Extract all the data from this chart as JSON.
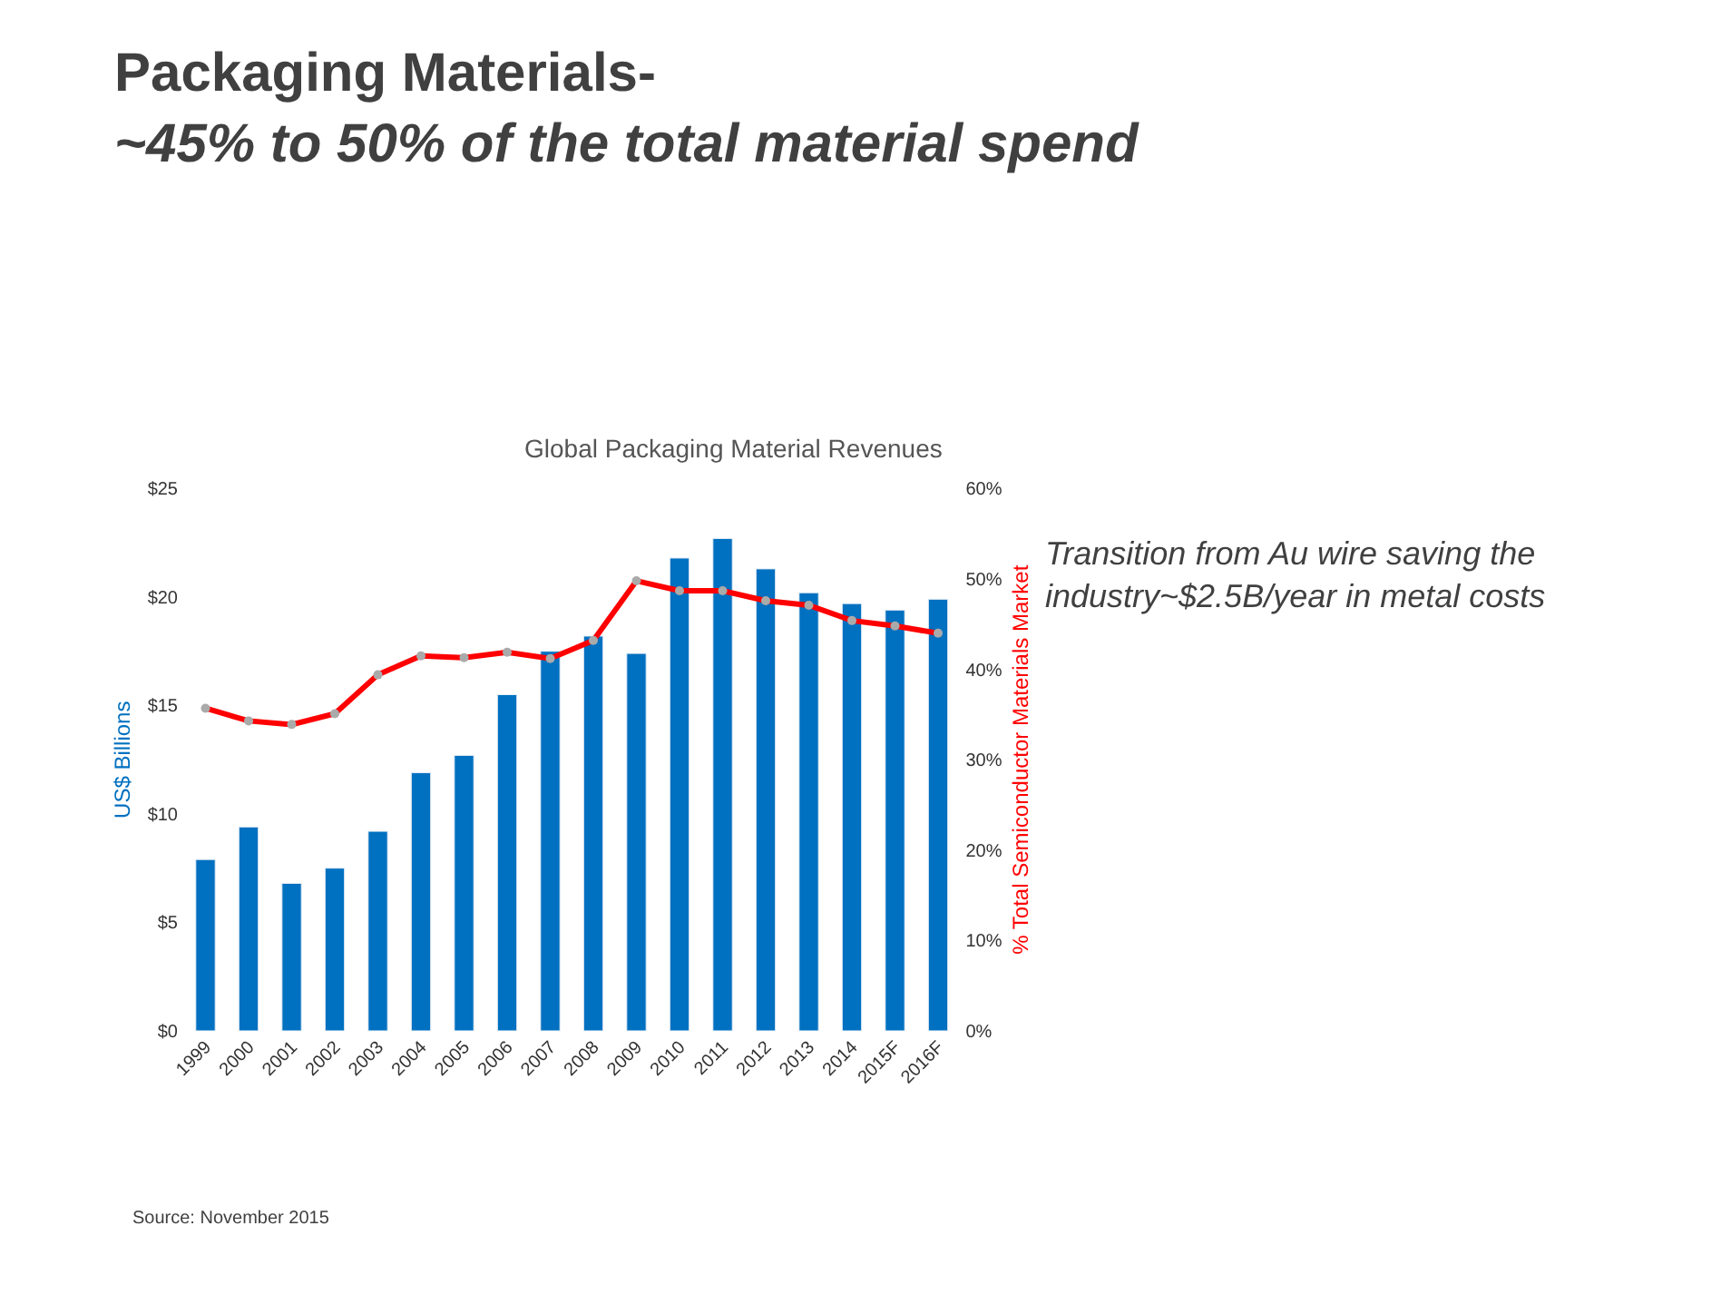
{
  "chart_data": {
    "type": "bar",
    "title": "Global Packaging Material Revenues",
    "subtitle": "Packaging Materials-\n~45% to 50% of the total material spend",
    "ylabel": "US$ Billions",
    "y2label": "% Total Semiconductor Materials Market",
    "categories": [
      "1999",
      "2000",
      "2001",
      "2002",
      "2003",
      "2004",
      "2005",
      "2006",
      "2007",
      "2008",
      "2009",
      "2010",
      "2011",
      "2012",
      "2013",
      "2014",
      "2015F",
      "2016F"
    ],
    "series": [
      {
        "color": "#0070c0",
        "values": [
          7.9,
          9.4,
          6.8,
          7.5,
          9.2,
          11.9,
          12.7,
          15.5,
          17.5,
          18.2,
          17.4,
          21.8,
          22.7,
          21.3,
          20.2,
          19.7,
          19.4,
          19.9
        ]
      },
      {
        "type": "line",
        "axis": "y2",
        "color": "#ff0000",
        "values": [
          35.7,
          34.3,
          33.9,
          35.1,
          39.4,
          41.5,
          41.3,
          41.9,
          41.2,
          43.2,
          49.8,
          48.7,
          48.7,
          47.6,
          47.1,
          45.4,
          44.8,
          44.0
        ]
      }
    ],
    "ylim": [
      0,
      25
    ],
    "yticks": [
      {
        "value": 0,
        "label": "$0"
      },
      {
        "value": 5,
        "label": "$5"
      },
      {
        "value": 10,
        "label": "$10"
      },
      {
        "value": 15,
        "label": "$15"
      },
      {
        "value": 20,
        "label": "$20"
      },
      {
        "value": 25,
        "label": "$25"
      }
    ],
    "y2lim": [
      0,
      60
    ],
    "y2ticks": [
      {
        "value": 0,
        "label": "0%"
      },
      {
        "value": 10,
        "label": "10%"
      },
      {
        "value": 20,
        "label": "20%"
      },
      {
        "value": 30,
        "label": "30%"
      },
      {
        "value": 40,
        "label": "40%"
      },
      {
        "value": 50,
        "label": "50%"
      },
      {
        "value": 60,
        "label": "60%"
      }
    ],
    "marker": "circle",
    "annotations": [
      "Transition from Au wire saving the\nindustry~$2.5B/year in metal costs",
      "Source: November 2015"
    ]
  }
}
